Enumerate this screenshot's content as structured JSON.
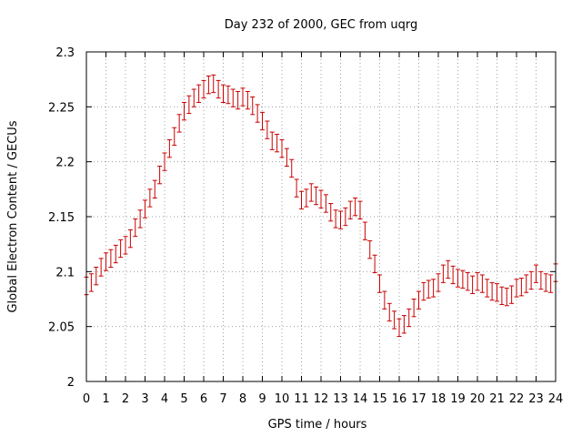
{
  "chart_data": {
    "type": "scatter",
    "title": "Day 232 of 2000, GEC from uqrg",
    "xlabel": "GPS time / hours",
    "ylabel": "Global Electron Content / GECUs",
    "xlim": [
      0,
      24
    ],
    "ylim": [
      2,
      2.3
    ],
    "xticks": [
      "0",
      "1",
      "2",
      "3",
      "4",
      "5",
      "6",
      "7",
      "8",
      "9",
      "10",
      "11",
      "12",
      "13",
      "14",
      "15",
      "16",
      "17",
      "18",
      "19",
      "20",
      "21",
      "22",
      "23",
      "24"
    ],
    "yticks": [
      "2",
      "2.05",
      "2.1",
      "2.15",
      "2.2",
      "2.25",
      "2.3"
    ],
    "grid": true,
    "legend": "none",
    "series_color": "#c80000",
    "error": 0.008,
    "x": [
      0,
      0.25,
      0.5,
      0.75,
      1,
      1.25,
      1.5,
      1.75,
      2,
      2.25,
      2.5,
      2.75,
      3,
      3.25,
      3.5,
      3.75,
      4,
      4.25,
      4.5,
      4.75,
      5,
      5.25,
      5.5,
      5.75,
      6,
      6.25,
      6.5,
      6.75,
      7,
      7.25,
      7.5,
      7.75,
      8,
      8.25,
      8.5,
      8.75,
      9,
      9.25,
      9.5,
      9.75,
      10,
      10.25,
      10.5,
      10.75,
      11,
      11.25,
      11.5,
      11.75,
      12,
      12.25,
      12.5,
      12.75,
      13,
      13.25,
      13.5,
      13.75,
      14,
      14.25,
      14.5,
      14.75,
      15,
      15.25,
      15.5,
      15.75,
      16,
      16.25,
      16.5,
      16.75,
      17,
      17.25,
      17.5,
      17.75,
      18,
      18.25,
      18.5,
      18.75,
      19,
      19.25,
      19.5,
      19.75,
      20,
      20.25,
      20.5,
      20.75,
      21,
      21.25,
      21.5,
      21.75,
      22,
      22.25,
      22.5,
      22.75,
      23,
      23.25,
      23.5,
      23.75,
      24
    ],
    "values": [
      2.087,
      2.09,
      2.096,
      2.104,
      2.109,
      2.112,
      2.116,
      2.121,
      2.124,
      2.13,
      2.14,
      2.148,
      2.157,
      2.167,
      2.175,
      2.188,
      2.2,
      2.212,
      2.223,
      2.235,
      2.246,
      2.252,
      2.258,
      2.262,
      2.266,
      2.27,
      2.271,
      2.266,
      2.262,
      2.261,
      2.258,
      2.256,
      2.259,
      2.256,
      2.251,
      2.244,
      2.237,
      2.229,
      2.219,
      2.217,
      2.212,
      2.204,
      2.194,
      2.176,
      2.165,
      2.167,
      2.172,
      2.169,
      2.166,
      2.162,
      2.154,
      2.148,
      2.147,
      2.15,
      2.156,
      2.159,
      2.156,
      2.137,
      2.12,
      2.107,
      2.089,
      2.074,
      2.063,
      2.056,
      2.049,
      2.052,
      2.058,
      2.067,
      2.074,
      2.082,
      2.084,
      2.085,
      2.09,
      2.098,
      2.102,
      2.097,
      2.094,
      2.093,
      2.091,
      2.088,
      2.091,
      2.089,
      2.085,
      2.082,
      2.081,
      2.078,
      2.077,
      2.079,
      2.085,
      2.086,
      2.089,
      2.092,
      2.098,
      2.092,
      2.09,
      2.089,
      2.099
    ]
  }
}
